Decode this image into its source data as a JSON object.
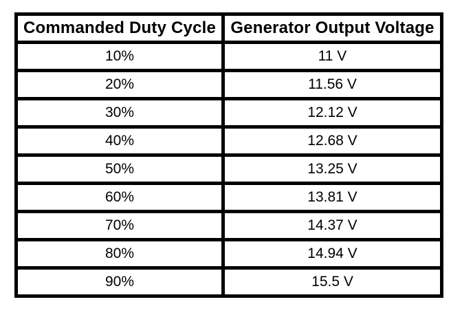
{
  "style": {
    "background": "#ffffff",
    "border_color": "#000000",
    "text_color": "#000000"
  },
  "chart_data": {
    "type": "table",
    "columns": [
      "Commanded Duty Cycle",
      "Generator Output Voltage"
    ],
    "rows": [
      [
        "10%",
        "11 V"
      ],
      [
        "20%",
        "11.56 V"
      ],
      [
        "30%",
        "12.12 V"
      ],
      [
        "40%",
        "12.68 V"
      ],
      [
        "50%",
        "13.25 V"
      ],
      [
        "60%",
        "13.81 V"
      ],
      [
        "70%",
        "14.37 V"
      ],
      [
        "80%",
        "14.94 V"
      ],
      [
        "90%",
        "15.5 V"
      ]
    ],
    "series": [
      {
        "name": "Generator Output Voltage (V)",
        "values": [
          11,
          11.56,
          12.12,
          12.68,
          13.25,
          13.81,
          14.37,
          14.94,
          15.5
        ]
      }
    ],
    "categories_numeric_percent": [
      10,
      20,
      30,
      40,
      50,
      60,
      70,
      80,
      90
    ],
    "xlabel": "Commanded Duty Cycle",
    "ylabel": "Generator Output Voltage",
    "grid": true,
    "legend_position": "none"
  }
}
